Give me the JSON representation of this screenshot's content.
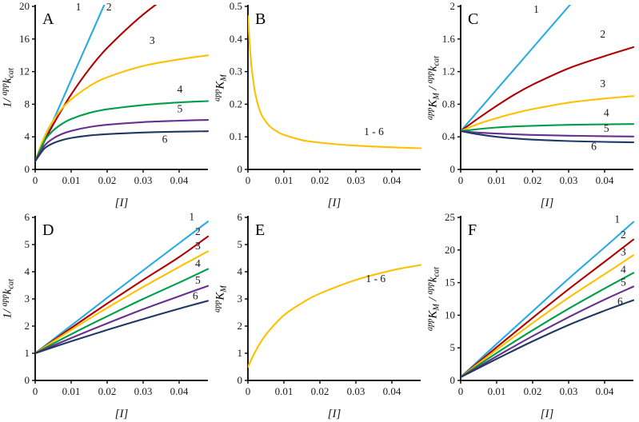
{
  "figure": {
    "background": "#ffffff",
    "axis_color": "#000000",
    "text_color": "#1a1a1a",
    "xlabel": "[I]"
  },
  "chart_data": [
    {
      "id": "A",
      "type": "line",
      "panel_label": "A",
      "xlabel": "[I]",
      "ylabel": [
        [
          "1/ ",
          "n"
        ],
        [
          "app",
          "sup"
        ],
        [
          "k",
          "n"
        ],
        [
          "cat",
          "sub"
        ]
      ],
      "xlim": [
        0,
        0.048
      ],
      "ylim": [
        0,
        20
      ],
      "xticks": [
        0,
        0.01,
        0.02,
        0.03,
        0.04
      ],
      "xtick_labels": [
        "0",
        "0.01",
        "0.02",
        "0.03",
        "0.04"
      ],
      "yticks": [
        0,
        4,
        8,
        12,
        16,
        20
      ],
      "ytick_labels": [
        "0",
        "4",
        "8",
        "12",
        "16",
        "20"
      ],
      "grid": false,
      "series": [
        {
          "name": "1",
          "color": "#29abe2",
          "x": [
            0,
            0.0025,
            0.005,
            0.0075,
            0.01,
            0.015,
            0.02,
            0.03,
            0.04,
            0.048
          ],
          "y": [
            1,
            3.5,
            6,
            8.5,
            11,
            16,
            21,
            31,
            41,
            49
          ],
          "label_pos": [
            0.012,
            19.5
          ]
        },
        {
          "name": "2",
          "color": "#b00000",
          "x": [
            0,
            0.0025,
            0.005,
            0.0075,
            0.01,
            0.015,
            0.02,
            0.03,
            0.04,
            0.048
          ],
          "y": [
            1,
            3.4,
            5.5,
            7.4,
            9.2,
            12.3,
            14.9,
            19,
            22.2,
            24.2
          ],
          "label_pos": [
            0.0205,
            19.5
          ]
        },
        {
          "name": "3",
          "color": "#ffc000",
          "x": [
            0,
            0.0025,
            0.005,
            0.0075,
            0.01,
            0.015,
            0.02,
            0.03,
            0.04,
            0.048
          ],
          "y": [
            1,
            3.96,
            6.0,
            7.5,
            8.6,
            10.2,
            11.3,
            12.7,
            13.5,
            14.0
          ],
          "label_pos": [
            0.0325,
            15.4
          ]
        },
        {
          "name": "4",
          "color": "#009e49",
          "x": [
            0,
            0.0025,
            0.005,
            0.0075,
            0.01,
            0.015,
            0.02,
            0.03,
            0.04,
            0.048
          ],
          "y": [
            1,
            3.44,
            4.77,
            5.61,
            6.19,
            6.93,
            7.38,
            7.9,
            8.22,
            8.38
          ],
          "label_pos": [
            0.0402,
            9.4
          ]
        },
        {
          "name": "5",
          "color": "#66308f",
          "x": [
            0,
            0.0025,
            0.005,
            0.0075,
            0.01,
            0.015,
            0.02,
            0.03,
            0.04,
            0.048
          ],
          "y": [
            1,
            2.87,
            3.8,
            4.36,
            4.73,
            5.2,
            5.48,
            5.8,
            5.98,
            6.07
          ],
          "label_pos": [
            0.0402,
            7.0
          ]
        },
        {
          "name": "6",
          "color": "#1f3864",
          "x": [
            0,
            0.0025,
            0.005,
            0.0075,
            0.01,
            0.015,
            0.02,
            0.03,
            0.04,
            0.048
          ],
          "y": [
            1,
            2.54,
            3.22,
            3.61,
            3.86,
            4.16,
            4.33,
            4.53,
            4.64,
            4.69
          ],
          "label_pos": [
            0.036,
            3.3
          ]
        }
      ]
    },
    {
      "id": "B",
      "type": "line",
      "panel_label": "B",
      "xlabel": "[I]",
      "ylabel": [
        [
          "app",
          "sup"
        ],
        [
          "K",
          "n"
        ],
        [
          "M",
          "sub"
        ]
      ],
      "xlim": [
        0,
        0.048
      ],
      "ylim": [
        0,
        0.5
      ],
      "xticks": [
        0,
        0.01,
        0.02,
        0.03,
        0.04
      ],
      "xtick_labels": [
        "0",
        "0.01",
        "0.02",
        "0.03",
        "0.04"
      ],
      "yticks": [
        0,
        0.1,
        0.2,
        0.3,
        0.4,
        0.5
      ],
      "ytick_labels": [
        "0",
        "0.1",
        "0.2",
        "0.3",
        "0.4",
        "0.5"
      ],
      "grid": false,
      "series": [
        {
          "name": "1 - 6",
          "color": "#ffc000",
          "x": [
            0,
            0.0005,
            0.001,
            0.0015,
            0.002,
            0.003,
            0.004,
            0.006,
            0.008,
            0.01,
            0.015,
            0.02,
            0.03,
            0.04,
            0.048
          ],
          "y": [
            0.47,
            0.38,
            0.315,
            0.27,
            0.235,
            0.19,
            0.163,
            0.133,
            0.117,
            0.106,
            0.09,
            0.082,
            0.073,
            0.068,
            0.065
          ],
          "label_pos": [
            0.035,
            0.105
          ]
        }
      ]
    },
    {
      "id": "C",
      "type": "line",
      "panel_label": "C",
      "xlabel": "[I]",
      "ylabel": [
        [
          "app",
          "sup"
        ],
        [
          "K",
          "n"
        ],
        [
          "M",
          "sub"
        ],
        [
          " / ",
          "n"
        ],
        [
          "app",
          "sup"
        ],
        [
          "k",
          "n"
        ],
        [
          "cat",
          "sub"
        ]
      ],
      "xlim": [
        0,
        0.048
      ],
      "ylim": [
        0,
        2
      ],
      "xticks": [
        0,
        0.01,
        0.02,
        0.03,
        0.04
      ],
      "xtick_labels": [
        "0",
        "0.01",
        "0.02",
        "0.03",
        "0.04"
      ],
      "yticks": [
        0,
        0.4,
        0.8,
        1.2,
        1.6,
        2
      ],
      "ytick_labels": [
        "0",
        "0.4",
        "0.8",
        "1.2",
        "1.6",
        "2"
      ],
      "grid": false,
      "series": [
        {
          "name": "1",
          "color": "#29abe2",
          "x": [
            0,
            0.005,
            0.01,
            0.015,
            0.02,
            0.03,
            0.04,
            0.048
          ],
          "y": [
            0.47,
            0.725,
            0.98,
            1.235,
            1.49,
            2.0,
            2.51,
            2.92
          ],
          "label_pos": [
            0.021,
            1.92
          ]
        },
        {
          "name": "2",
          "color": "#b00000",
          "x": [
            0,
            0.005,
            0.01,
            0.015,
            0.02,
            0.03,
            0.04,
            0.048
          ],
          "y": [
            0.47,
            0.63,
            0.78,
            0.92,
            1.04,
            1.24,
            1.39,
            1.5
          ],
          "label_pos": [
            0.0395,
            1.62
          ]
        },
        {
          "name": "3",
          "color": "#ffc000",
          "x": [
            0,
            0.005,
            0.01,
            0.015,
            0.02,
            0.03,
            0.04,
            0.048
          ],
          "y": [
            0.47,
            0.56,
            0.63,
            0.69,
            0.74,
            0.82,
            0.87,
            0.9
          ],
          "label_pos": [
            0.0395,
            1.01
          ]
        },
        {
          "name": "4",
          "color": "#009e49",
          "x": [
            0,
            0.005,
            0.01,
            0.015,
            0.02,
            0.03,
            0.04,
            0.048
          ],
          "y": [
            0.47,
            0.495,
            0.515,
            0.527,
            0.535,
            0.547,
            0.553,
            0.557
          ],
          "label_pos": [
            0.0405,
            0.65
          ]
        },
        {
          "name": "5",
          "color": "#66308f",
          "x": [
            0,
            0.005,
            0.01,
            0.015,
            0.02,
            0.03,
            0.04,
            0.048
          ],
          "y": [
            0.47,
            0.452,
            0.44,
            0.431,
            0.424,
            0.414,
            0.408,
            0.404
          ],
          "label_pos": [
            0.0405,
            0.46
          ]
        },
        {
          "name": "6",
          "color": "#1f3864",
          "x": [
            0,
            0.005,
            0.01,
            0.015,
            0.02,
            0.03,
            0.04,
            0.048
          ],
          "y": [
            0.47,
            0.43,
            0.4,
            0.38,
            0.366,
            0.348,
            0.338,
            0.332
          ],
          "label_pos": [
            0.037,
            0.24
          ]
        }
      ]
    },
    {
      "id": "D",
      "type": "line",
      "panel_label": "D",
      "xlabel": "[I]",
      "ylabel": [
        [
          "1/ ",
          "n"
        ],
        [
          "app",
          "sup"
        ],
        [
          "k",
          "n"
        ],
        [
          "cat",
          "sub"
        ]
      ],
      "xlim": [
        0,
        0.048
      ],
      "ylim": [
        0,
        6
      ],
      "xticks": [
        0,
        0.01,
        0.02,
        0.03,
        0.04
      ],
      "xtick_labels": [
        "0",
        "0.01",
        "0.02",
        "0.03",
        "0.04"
      ],
      "yticks": [
        0,
        1,
        2,
        3,
        4,
        5,
        6
      ],
      "ytick_labels": [
        "0",
        "1",
        "2",
        "3",
        "4",
        "5",
        "6"
      ],
      "grid": false,
      "series": [
        {
          "name": "1",
          "color": "#29abe2",
          "x": [
            0,
            0.01,
            0.02,
            0.03,
            0.04,
            0.048
          ],
          "y": [
            1,
            2.02,
            3.04,
            4.05,
            5.05,
            5.85
          ],
          "label_pos": [
            0.0435,
            5.9
          ]
        },
        {
          "name": "2",
          "color": "#b00000",
          "x": [
            0,
            0.01,
            0.02,
            0.03,
            0.04,
            0.048
          ],
          "y": [
            1,
            1.93,
            2.83,
            3.7,
            4.54,
            5.3
          ],
          "label_pos": [
            0.0452,
            5.35
          ]
        },
        {
          "name": "3",
          "color": "#ffc000",
          "x": [
            0,
            0.01,
            0.02,
            0.03,
            0.04,
            0.048
          ],
          "y": [
            1,
            1.86,
            2.67,
            3.44,
            4.18,
            4.75
          ],
          "label_pos": [
            0.0452,
            4.82
          ]
        },
        {
          "name": "4",
          "color": "#009e49",
          "x": [
            0,
            0.01,
            0.02,
            0.03,
            0.04,
            0.048
          ],
          "y": [
            1,
            1.7,
            2.36,
            3.0,
            3.6,
            4.1
          ],
          "label_pos": [
            0.0452,
            4.18
          ]
        },
        {
          "name": "5",
          "color": "#66308f",
          "x": [
            0,
            0.01,
            0.02,
            0.03,
            0.04,
            0.048
          ],
          "y": [
            1,
            1.56,
            2.1,
            2.62,
            3.1,
            3.48
          ],
          "label_pos": [
            0.0452,
            3.56
          ]
        },
        {
          "name": "6",
          "color": "#1f3864",
          "x": [
            0,
            0.01,
            0.02,
            0.03,
            0.04,
            0.048
          ],
          "y": [
            1,
            1.44,
            1.86,
            2.26,
            2.64,
            2.93
          ],
          "label_pos": [
            0.0445,
            2.98
          ]
        }
      ]
    },
    {
      "id": "E",
      "type": "line",
      "panel_label": "E",
      "xlabel": "[I]",
      "ylabel": [
        [
          "app",
          "sup"
        ],
        [
          "K",
          "n"
        ],
        [
          "M",
          "sub"
        ]
      ],
      "xlim": [
        0,
        0.048
      ],
      "ylim": [
        0,
        6
      ],
      "xticks": [
        0,
        0.01,
        0.02,
        0.03,
        0.04
      ],
      "xtick_labels": [
        "0",
        "0.01",
        "0.02",
        "0.03",
        "0.04"
      ],
      "yticks": [
        0,
        1,
        2,
        3,
        4,
        5,
        6
      ],
      "ytick_labels": [
        "0",
        "1",
        "2",
        "3",
        "4",
        "5",
        "6"
      ],
      "grid": false,
      "series": [
        {
          "name": "1 - 6",
          "color": "#ffc000",
          "x": [
            0,
            0.002,
            0.004,
            0.006,
            0.01,
            0.015,
            0.02,
            0.03,
            0.04,
            0.048
          ],
          "y": [
            0.5,
            1.05,
            1.5,
            1.85,
            2.4,
            2.85,
            3.2,
            3.7,
            4.05,
            4.25
          ],
          "label_pos": [
            0.0355,
            3.62
          ]
        }
      ]
    },
    {
      "id": "F",
      "type": "line",
      "panel_label": "F",
      "xlabel": "[I]",
      "ylabel": [
        [
          "app",
          "sup"
        ],
        [
          "K",
          "n"
        ],
        [
          "M",
          "sub"
        ],
        [
          " / ",
          "n"
        ],
        [
          "app",
          "sup"
        ],
        [
          "k",
          "n"
        ],
        [
          "cat",
          "sub"
        ]
      ],
      "xlim": [
        0,
        0.048
      ],
      "ylim": [
        0,
        25
      ],
      "xticks": [
        0,
        0.01,
        0.02,
        0.03,
        0.04
      ],
      "xtick_labels": [
        "0",
        "0.01",
        "0.02",
        "0.03",
        "0.04"
      ],
      "yticks": [
        0,
        5,
        10,
        15,
        20,
        25
      ],
      "ytick_labels": [
        "0",
        "5",
        "10",
        "15",
        "20",
        "25"
      ],
      "grid": false,
      "series": [
        {
          "name": "1",
          "color": "#29abe2",
          "x": [
            0,
            0.01,
            0.02,
            0.03,
            0.04,
            0.048
          ],
          "y": [
            0.5,
            5.6,
            10.6,
            15.6,
            20.4,
            24.3
          ],
          "label_pos": [
            0.0435,
            24.2
          ]
        },
        {
          "name": "2",
          "color": "#b00000",
          "x": [
            0,
            0.01,
            0.02,
            0.03,
            0.04,
            0.048
          ],
          "y": [
            0.5,
            5.1,
            9.6,
            14.0,
            18.2,
            21.6
          ],
          "label_pos": [
            0.0452,
            21.8
          ]
        },
        {
          "name": "3",
          "color": "#ffc000",
          "x": [
            0,
            0.01,
            0.02,
            0.03,
            0.04,
            0.048
          ],
          "y": [
            0.5,
            4.7,
            8.8,
            12.7,
            16.3,
            19.2
          ],
          "label_pos": [
            0.0452,
            19.2
          ]
        },
        {
          "name": "4",
          "color": "#009e49",
          "x": [
            0,
            0.01,
            0.02,
            0.03,
            0.04,
            0.048
          ],
          "y": [
            0.5,
            4.2,
            7.7,
            11.0,
            14.1,
            16.5
          ],
          "label_pos": [
            0.0452,
            16.5
          ]
        },
        {
          "name": "5",
          "color": "#66308f",
          "x": [
            0,
            0.01,
            0.02,
            0.03,
            0.04,
            0.048
          ],
          "y": [
            0.5,
            3.7,
            6.8,
            9.7,
            12.4,
            14.4
          ],
          "label_pos": [
            0.0452,
            14.5
          ]
        },
        {
          "name": "6",
          "color": "#1f3864",
          "x": [
            0,
            0.01,
            0.02,
            0.03,
            0.04,
            0.048
          ],
          "y": [
            0.5,
            3.3,
            6.0,
            8.5,
            10.7,
            12.3
          ],
          "label_pos": [
            0.0443,
            11.6
          ]
        }
      ]
    }
  ]
}
